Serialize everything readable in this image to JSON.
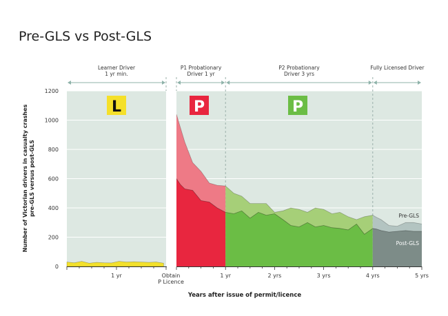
{
  "chart_data": {
    "type": "area",
    "title": "Pre-GLS vs Post-GLS",
    "xlabel": "Years after issue of permit/licence",
    "ylabel_lines": [
      "Number of Victorian drivers in casualty crashes",
      "pre-GLS versus post-GLS"
    ],
    "ylim": [
      0,
      1200
    ],
    "yticks": [
      0,
      200,
      400,
      600,
      800,
      1000,
      1200
    ],
    "grid": true,
    "stages": [
      {
        "label_lines": [
          "Learner Driver",
          "1 yr min."
        ],
        "badge": "L",
        "badge_color": "#f5e02a",
        "badge_text_color": "#111111",
        "bg": "#dde8e2"
      },
      {
        "label_lines": [
          "P1 Probationary",
          "Driver 1 yr"
        ],
        "badge": "P",
        "badge_color": "#e8263f",
        "badge_text_color": "#ffffff",
        "bg": "#dde8e2"
      },
      {
        "label_lines": [
          "P2 Probationary",
          "Driver 3 yrs"
        ],
        "badge": "P",
        "badge_color": "#6bbd45",
        "badge_text_color": "#ffffff",
        "bg": "#dde8e2"
      },
      {
        "label_lines": [
          "Fully Licensed Driver"
        ],
        "badge": "",
        "badge_color": "",
        "badge_text_color": "",
        "bg": "#dde8e2"
      }
    ],
    "x_tick_labels": [
      {
        "x": -1,
        "lines": [
          "1 yr"
        ]
      },
      {
        "x": 0,
        "lines": [
          "Obtain",
          "P Licence"
        ]
      },
      {
        "x": 1,
        "lines": [
          "1 yr"
        ]
      },
      {
        "x": 2,
        "lines": [
          "2 yrs"
        ]
      },
      {
        "x": 3,
        "lines": [
          "3 yrs"
        ]
      },
      {
        "x": 4,
        "lines": [
          "4 yrs"
        ]
      },
      {
        "x": 5,
        "lines": [
          "5 yrs"
        ]
      }
    ],
    "learner_series": {
      "x": [
        -2.0,
        -1.85,
        -1.7,
        -1.55,
        -1.4,
        -1.25,
        -1.1,
        -0.95,
        -0.8,
        -0.65,
        -0.5,
        -0.35,
        -0.2,
        -0.05
      ],
      "values": [
        30,
        25,
        35,
        22,
        28,
        25,
        24,
        35,
        30,
        32,
        30,
        28,
        30,
        22
      ]
    },
    "series": [
      {
        "name": "Pre-GLS",
        "x": [
          0.0,
          0.08,
          0.17,
          0.33,
          0.5,
          0.67,
          0.83,
          1.0,
          1.17,
          1.33,
          1.5,
          1.67,
          1.83,
          2.0,
          2.17,
          2.33,
          2.5,
          2.67,
          2.83,
          3.0,
          3.17,
          3.33,
          3.5,
          3.67,
          3.83,
          4.0,
          4.08,
          4.17,
          4.33,
          4.5,
          4.67,
          4.83,
          5.0
        ],
        "values": [
          1040,
          950,
          850,
          710,
          650,
          570,
          555,
          550,
          500,
          480,
          430,
          430,
          430,
          370,
          380,
          400,
          390,
          370,
          400,
          390,
          360,
          370,
          340,
          320,
          340,
          350,
          335,
          320,
          280,
          275,
          300,
          300,
          290
        ]
      },
      {
        "name": "Post-GLS",
        "x": [
          0.0,
          0.08,
          0.17,
          0.33,
          0.5,
          0.67,
          0.83,
          1.0,
          1.17,
          1.33,
          1.5,
          1.67,
          1.83,
          2.0,
          2.17,
          2.33,
          2.5,
          2.67,
          2.83,
          3.0,
          3.17,
          3.33,
          3.5,
          3.67,
          3.83,
          4.0,
          4.08,
          4.17,
          4.33,
          4.5,
          4.67,
          4.83,
          5.0
        ],
        "values": [
          600,
          560,
          530,
          520,
          450,
          440,
          400,
          370,
          360,
          380,
          330,
          370,
          350,
          360,
          320,
          280,
          270,
          300,
          270,
          280,
          265,
          260,
          250,
          290,
          220,
          260,
          255,
          245,
          235,
          240,
          245,
          240,
          240
        ]
      }
    ],
    "colors": {
      "pre_p1": "#ee7a86",
      "post_p1": "#e8263f",
      "pre_p2": "#a6cf78",
      "post_p2": "#6bbd45",
      "pre_full": "#b3c4c1",
      "post_full": "#7d8c88",
      "learner": "#f2e02c",
      "arrow": "#8fb3aa",
      "gap": "#ffffff",
      "grid": "#ffffff"
    }
  }
}
